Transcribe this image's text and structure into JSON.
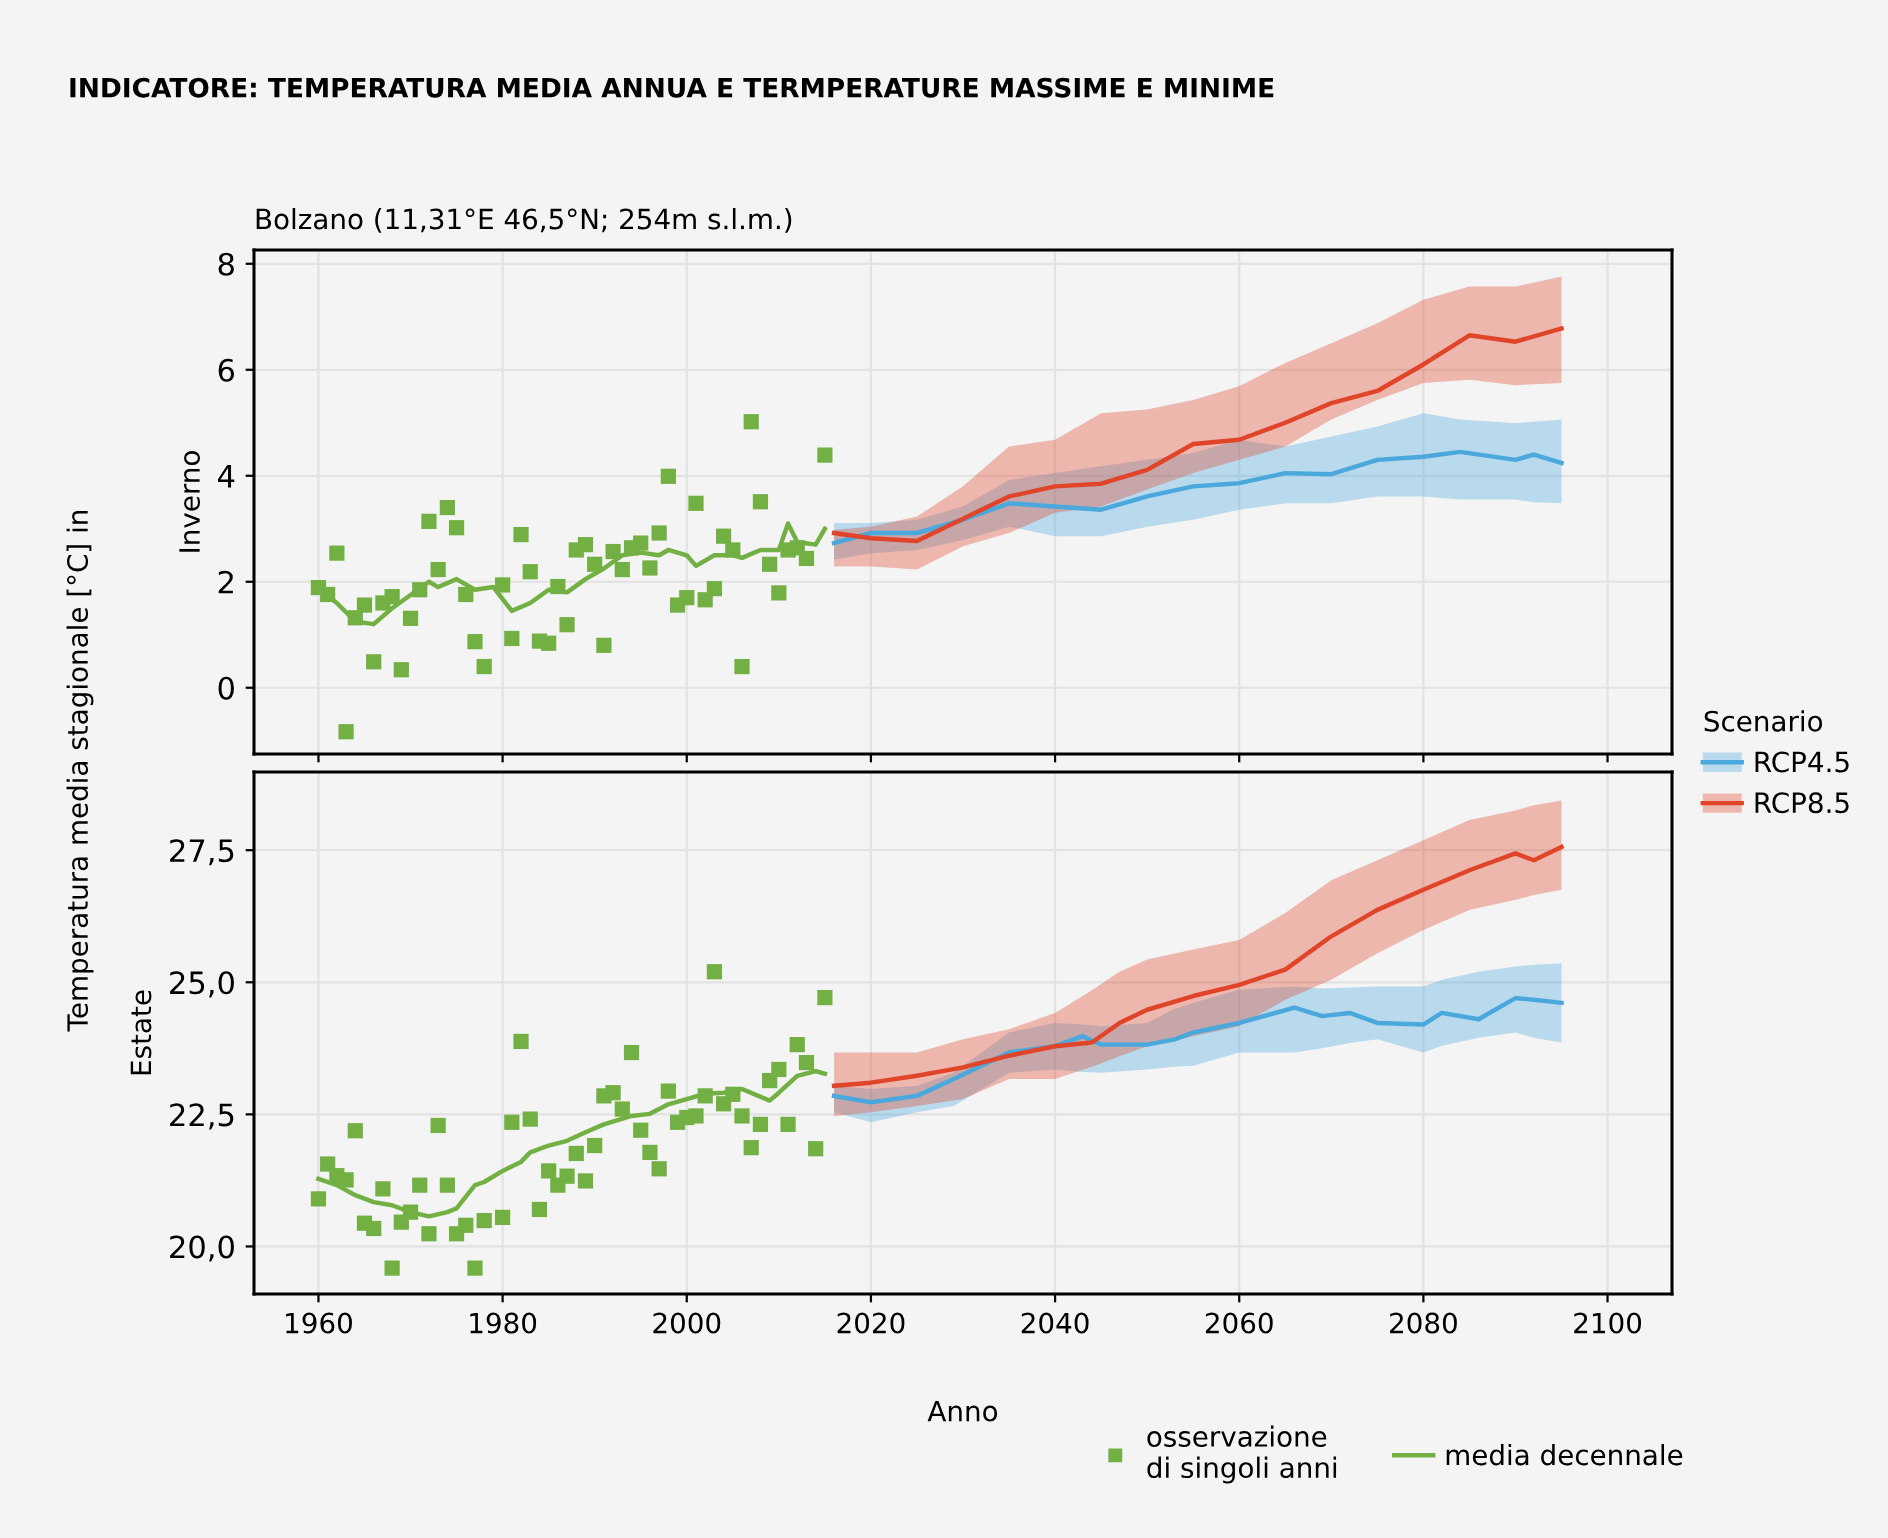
{
  "chart_data": [
    {
      "type": "line",
      "title": "INDICATORE: TEMPERATURA MEDIA ANNUA E TERMPERATURE MASSIME E MINIME",
      "subtitle": "Bolzano (11,31°E 46,5°N; 254m s.l.m.)",
      "ylabel": "Inverno",
      "annotations": [
        "Temperatura media stagionale [°C] in"
      ],
      "legend": "right",
      "legend_title": "Scenario",
      "grid": true,
      "tick_labels": "y",
      "xlim": [
        1953,
        2107
      ],
      "xticks": [
        1960,
        1980,
        2000,
        2020,
        2040,
        2060,
        2080,
        2100
      ],
      "ylim": [
        -1.25,
        8.26
      ],
      "yticks": [
        0,
        2,
        4,
        6,
        8
      ],
      "series": [
        {
          "type": "scatter",
          "marker": "square",
          "color": "#72b043",
          "x": [
            1960,
            1961,
            1962,
            1963,
            1964,
            1965,
            1966,
            1967,
            1968,
            1969,
            1970,
            1971,
            1972,
            1973,
            1974,
            1975,
            1976,
            1977,
            1978,
            1980,
            1981,
            1982,
            1983,
            1984,
            1985,
            1986,
            1987,
            1988,
            1989,
            1990,
            1991,
            1992,
            1993,
            1994,
            1995,
            1996,
            1997,
            1998,
            1999,
            2000,
            2001,
            2002,
            2003,
            2004,
            2005,
            2006,
            2007,
            2008,
            2009,
            2010,
            2011,
            2012,
            2013,
            2015
          ],
          "values": [
            1.89,
            1.76,
            2.54,
            -0.83,
            1.32,
            1.56,
            0.49,
            1.6,
            1.72,
            0.34,
            1.31,
            1.85,
            3.14,
            2.23,
            3.4,
            3.02,
            1.76,
            0.87,
            0.4,
            1.94,
            0.93,
            2.89,
            2.19,
            0.88,
            0.84,
            1.91,
            1.19,
            2.6,
            2.7,
            2.33,
            0.8,
            2.57,
            2.23,
            2.64,
            2.73,
            2.26,
            2.92,
            3.99,
            1.56,
            1.7,
            3.48,
            1.66,
            1.87,
            2.86,
            2.6,
            0.4,
            5.02,
            3.51,
            2.33,
            1.79,
            2.6,
            2.64,
            2.44,
            4.39
          ]
        },
        {
          "color": "#72b043",
          "x": [
            1960,
            1962,
            1964,
            1966,
            1968,
            1970,
            1972,
            1973,
            1975,
            1977,
            1979,
            1981,
            1983,
            1985,
            1987,
            1989,
            1991,
            1993,
            1995,
            1997,
            1998,
            2000,
            2001,
            2003,
            2005,
            2006,
            2008,
            2010,
            2011,
            2012,
            2014,
            2015
          ],
          "values": [
            1.85,
            1.6,
            1.25,
            1.2,
            1.5,
            1.75,
            2.0,
            1.9,
            2.05,
            1.85,
            1.9,
            1.45,
            1.6,
            1.85,
            1.8,
            2.05,
            2.25,
            2.5,
            2.55,
            2.5,
            2.6,
            2.5,
            2.3,
            2.5,
            2.5,
            2.45,
            2.6,
            2.6,
            3.1,
            2.75,
            2.7,
            3.0
          ]
        },
        {
          "name": "RCP4.5",
          "color": "#4aa8dc",
          "x": [
            2016,
            2020,
            2025,
            2030,
            2035,
            2040,
            2045,
            2050,
            2055,
            2060,
            2065,
            2070,
            2075,
            2080,
            2084,
            2090,
            2092,
            2095
          ],
          "values": [
            2.73,
            2.92,
            2.92,
            3.17,
            3.48,
            3.42,
            3.36,
            3.61,
            3.8,
            3.86,
            4.05,
            4.03,
            4.3,
            4.36,
            4.45,
            4.3,
            4.4,
            4.24
          ],
          "lower": [
            2.42,
            2.54,
            2.6,
            2.79,
            3.04,
            2.86,
            2.86,
            3.04,
            3.17,
            3.36,
            3.48,
            3.48,
            3.61,
            3.61,
            3.55,
            3.55,
            3.5,
            3.48
          ],
          "upper": [
            3.11,
            3.11,
            3.17,
            3.42,
            3.92,
            4.05,
            4.18,
            4.3,
            4.43,
            4.68,
            4.55,
            4.74,
            4.93,
            5.18,
            5.06,
            4.99,
            5.02,
            5.06
          ]
        },
        {
          "name": "RCP8.5",
          "color": "#e0452a",
          "x": [
            2016,
            2020,
            2025,
            2030,
            2035,
            2040,
            2045,
            2050,
            2055,
            2060,
            2065,
            2070,
            2075,
            2080,
            2085,
            2090,
            2095
          ],
          "values": [
            2.92,
            2.82,
            2.77,
            3.19,
            3.61,
            3.8,
            3.85,
            4.11,
            4.6,
            4.68,
            5.0,
            5.37,
            5.6,
            6.1,
            6.65,
            6.53,
            6.78
          ],
          "lower": [
            2.29,
            2.29,
            2.23,
            2.67,
            2.92,
            3.3,
            3.42,
            3.74,
            4.05,
            4.3,
            4.55,
            5.06,
            5.43,
            5.75,
            5.81,
            5.71,
            5.75
          ],
          "upper": [
            2.98,
            3.04,
            3.23,
            3.8,
            4.55,
            4.68,
            5.18,
            5.25,
            5.43,
            5.69,
            6.13,
            6.5,
            6.88,
            7.32,
            7.57,
            7.57,
            7.76
          ]
        }
      ]
    },
    {
      "type": "line",
      "ylabel": "Estate",
      "xlabel": "Anno",
      "legend": "bottom right",
      "grid": true,
      "xlim": [
        1953,
        2107
      ],
      "xticks": [
        1960,
        1980,
        2000,
        2020,
        2040,
        2060,
        2080,
        2100
      ],
      "ylim": [
        19.1,
        28.98
      ],
      "yticks": [
        {
          "value": 20,
          "label": "20,0"
        },
        {
          "value": 22.5,
          "label": "22,5"
        },
        {
          "value": 25,
          "label": "25,0"
        },
        {
          "value": 27.5,
          "label": "27,5"
        }
      ],
      "series": [
        {
          "type": "scatter",
          "marker": "square",
          "name": "osservazione\ndi singoli anni",
          "color": "#72b043",
          "x": [
            1960,
            1961,
            1962,
            1963,
            1964,
            1965,
            1966,
            1967,
            1968,
            1969,
            1970,
            1971,
            1972,
            1973,
            1974,
            1975,
            1976,
            1977,
            1978,
            1980,
            1981,
            1982,
            1983,
            1984,
            1985,
            1986,
            1987,
            1988,
            1989,
            1990,
            1991,
            1992,
            1993,
            1994,
            1995,
            1996,
            1997,
            1998,
            1999,
            2000,
            2001,
            2002,
            2003,
            2004,
            2005,
            2006,
            2007,
            2008,
            2009,
            2010,
            2011,
            2012,
            2013,
            2014,
            2015
          ],
          "values": [
            20.9,
            21.56,
            21.34,
            21.26,
            22.19,
            20.44,
            20.34,
            21.09,
            19.59,
            20.46,
            20.65,
            21.16,
            20.24,
            22.29,
            21.16,
            20.24,
            20.4,
            19.59,
            20.49,
            20.55,
            22.35,
            23.88,
            22.41,
            20.7,
            21.43,
            21.16,
            21.33,
            21.76,
            21.24,
            21.91,
            22.85,
            22.91,
            22.6,
            23.67,
            22.2,
            21.78,
            21.47,
            22.94,
            22.35,
            22.44,
            22.47,
            22.85,
            25.2,
            22.7,
            22.88,
            22.47,
            21.87,
            22.31,
            23.14,
            23.35,
            22.31,
            23.82,
            23.48,
            21.85,
            24.71
          ]
        },
        {
          "name": "media decennale",
          "color": "#72b043",
          "x": [
            1960,
            1962,
            1964,
            1966,
            1968,
            1970,
            1972,
            1974,
            1975,
            1977,
            1978,
            1980,
            1982,
            1983,
            1985,
            1987,
            1989,
            1991,
            1994,
            1996,
            1998,
            2000,
            2002,
            2004,
            2006,
            2009,
            2010,
            2012,
            2014,
            2015
          ],
          "values": [
            21.28,
            21.16,
            20.97,
            20.84,
            20.78,
            20.65,
            20.57,
            20.65,
            20.72,
            21.16,
            21.22,
            21.43,
            21.6,
            21.78,
            21.91,
            22.0,
            22.16,
            22.31,
            22.47,
            22.51,
            22.69,
            22.79,
            22.89,
            22.91,
            22.98,
            22.76,
            22.91,
            23.23,
            23.32,
            23.27
          ]
        },
        {
          "color": "#4aa8dc",
          "x": [
            2016,
            2020,
            2025,
            2029,
            2035,
            2040,
            2043,
            2045,
            2050,
            2053,
            2055,
            2060,
            2066,
            2069,
            2072,
            2075,
            2080,
            2082,
            2086,
            2090,
            2092,
            2095
          ],
          "values": [
            22.85,
            22.73,
            22.85,
            23.17,
            23.67,
            23.79,
            23.98,
            23.82,
            23.82,
            23.92,
            24.05,
            24.23,
            24.52,
            24.36,
            24.42,
            24.23,
            24.2,
            24.42,
            24.3,
            24.7,
            24.67,
            24.61
          ],
          "lower": [
            22.54,
            22.35,
            22.54,
            22.66,
            23.29,
            23.35,
            23.3,
            23.29,
            23.35,
            23.4,
            23.42,
            23.67,
            23.67,
            23.75,
            23.85,
            23.92,
            23.67,
            23.8,
            23.95,
            24.05,
            23.95,
            23.86
          ],
          "upper": [
            23.04,
            22.98,
            23.04,
            23.29,
            24.05,
            24.23,
            24.2,
            24.17,
            24.23,
            24.5,
            24.61,
            24.86,
            24.92,
            24.88,
            24.9,
            24.92,
            24.92,
            25.05,
            25.2,
            25.3,
            25.33,
            25.36
          ]
        },
        {
          "color": "#e0452a",
          "x": [
            2016,
            2020,
            2025,
            2030,
            2035,
            2040,
            2044,
            2047,
            2050,
            2055,
            2060,
            2065,
            2070,
            2075,
            2080,
            2085,
            2090,
            2092,
            2095
          ],
          "values": [
            23.04,
            23.1,
            23.23,
            23.39,
            23.61,
            23.79,
            23.86,
            24.23,
            24.48,
            24.74,
            24.95,
            25.24,
            25.87,
            26.37,
            26.75,
            27.12,
            27.44,
            27.31,
            27.56
          ],
          "lower": [
            22.47,
            22.54,
            22.66,
            22.79,
            23.17,
            23.17,
            23.4,
            23.6,
            23.79,
            23.98,
            24.17,
            24.67,
            25.05,
            25.55,
            25.99,
            26.37,
            26.56,
            26.65,
            26.75
          ],
          "upper": [
            23.67,
            23.67,
            23.67,
            23.92,
            24.11,
            24.42,
            24.85,
            25.2,
            25.43,
            25.62,
            25.8,
            26.31,
            26.93,
            27.31,
            27.69,
            28.07,
            28.25,
            28.35,
            28.44
          ]
        }
      ]
    }
  ]
}
